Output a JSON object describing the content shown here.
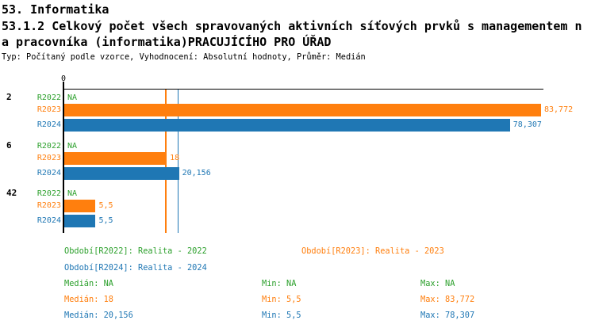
{
  "header": {
    "section_title": "53. Informatika",
    "indicator_line1": "53.1.2 Celkový počet všech spravovaných aktivních síťových prvků s managementem n",
    "indicator_line2": "a pracovníka (informatika)PRACUJÍCÍHO PRO ÚŘAD",
    "meta": "Typ: Počítaný podle vzorce, Vyhodnocení: Absolutní hodnoty, Průměr: Medián"
  },
  "chart_data": {
    "type": "bar",
    "orientation": "horizontal",
    "title": "53.1.2 Celkový počet všech spravovaných aktivních síťových prvků s managementem na pracovníka (informatika) PRACUJÍCÍHO PRO ÚŘAD",
    "value_axis_tick_labels": [
      "0"
    ],
    "value_axis_min": 0,
    "grid": false,
    "categories": [
      "2",
      "6",
      "42"
    ],
    "series_order": [
      "R2022",
      "R2023",
      "R2024"
    ],
    "series_colors": {
      "R2022": "#2ca02c",
      "R2023": "#ff7f0e",
      "R2024": "#1f77b4"
    },
    "groups": [
      {
        "label": "2",
        "rows": [
          {
            "series": "R2022",
            "value": null,
            "display": "NA"
          },
          {
            "series": "R2023",
            "value": 83.772,
            "display": "83,772"
          },
          {
            "series": "R2024",
            "value": 78.307,
            "display": "78,307"
          }
        ]
      },
      {
        "label": "6",
        "rows": [
          {
            "series": "R2022",
            "value": null,
            "display": "NA"
          },
          {
            "series": "R2023",
            "value": 18,
            "display": "18"
          },
          {
            "series": "R2024",
            "value": 20.156,
            "display": "20,156"
          }
        ]
      },
      {
        "label": "42",
        "rows": [
          {
            "series": "R2022",
            "value": null,
            "display": "NA"
          },
          {
            "series": "R2023",
            "value": 5.5,
            "display": "5,5"
          },
          {
            "series": "R2024",
            "value": 5.5,
            "display": "5,5"
          }
        ]
      }
    ],
    "median_lines": [
      {
        "series": "R2023",
        "value": 18
      },
      {
        "series": "R2024",
        "value": 20.156
      }
    ]
  },
  "legend": {
    "items": [
      {
        "series": "R2022",
        "text": "Období[R2022]: Realita - 2022"
      },
      {
        "series": "R2023",
        "text": "Období[R2023]: Realita - 2023"
      },
      {
        "series": "R2024",
        "text": "Období[R2024]: Realita - 2024"
      }
    ]
  },
  "stats": {
    "rows": [
      {
        "series": "R2022",
        "median": "Medián: NA",
        "min": "Min: NA",
        "max": "Max: NA"
      },
      {
        "series": "R2023",
        "median": "Medián: 18",
        "min": "Min: 5,5",
        "max": "Max: 83,772"
      },
      {
        "series": "R2024",
        "median": "Medián: 20,156",
        "min": "Min: 5,5",
        "max": "Max: 78,307"
      }
    ]
  }
}
